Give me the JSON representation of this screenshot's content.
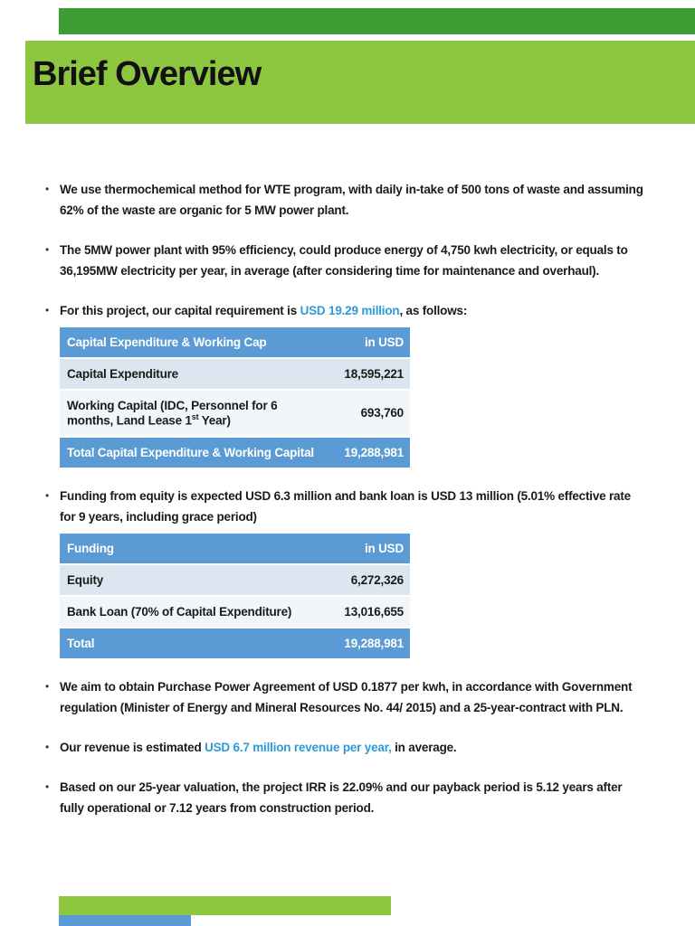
{
  "header": {
    "title": "Brief Overview"
  },
  "glyphs": {
    "bullet": "•"
  },
  "bullets": {
    "b1": "We use thermochemical method for WTE program, with daily in-take of 500 tons of waste and assuming 62% of the waste are organic for 5 MW power plant.",
    "b2": "The 5MW power plant with 95% efficiency, could produce energy of 4,750 kwh electricity, or equals to 36,195MW electricity per year, in average (after considering time for maintenance and overhaul).",
    "b3_pre": "For this project, our capital requirement is ",
    "b3_highlight": "USD 19.29 million",
    "b3_post": ", as follows:",
    "b4": "Funding from equity is expected USD 6.3 million and bank loan is USD 13 million (5.01% effective rate for 9 years, including grace period)",
    "b5": "We aim to obtain Purchase Power Agreement of USD 0.1877 per kwh, in accordance with Government regulation (Minister of Energy and Mineral Resources No. 44/ 2015) and a 25-year-contract with PLN.",
    "b6_pre": "Our revenue is estimated ",
    "b6_highlight": "USD 6.7 million revenue per year,",
    "b6_post": " in average.",
    "b7": "Based on our 25-year valuation, the project IRR is 22.09% and our payback period is 5.12 years after fully operational or 7.12 years from construction period."
  },
  "capital_table": {
    "header": {
      "label": "Capital Expenditure & Working Cap",
      "value": "in USD"
    },
    "rows": [
      {
        "label": "Capital Expenditure",
        "value": "18,595,221"
      },
      {
        "label_pre": "Working Capital (IDC, Personnel for 6 months, Land Lease 1",
        "label_sup": "st",
        "label_post": " Year)",
        "value": "693,760"
      }
    ],
    "total": {
      "label": "Total Capital Expenditure & Working Capital",
      "value": "19,288,981"
    }
  },
  "funding_table": {
    "header": {
      "label": "Funding",
      "value": "in USD"
    },
    "rows": [
      {
        "label": "Equity",
        "value": "6,272,326"
      },
      {
        "label": "Bank Loan (70% of Capital Expenditure)",
        "value": "13,016,655"
      }
    ],
    "total": {
      "label": "Total",
      "value": "19,288,981"
    }
  },
  "colors": {
    "band_green": "#8dc63f",
    "strip_green": "#3e9c35",
    "table_header_blue": "#5b9bd5",
    "accent_blue": "#2f9bd6",
    "row_odd": "#dce6f1",
    "row_even": "#f2f6fa"
  }
}
